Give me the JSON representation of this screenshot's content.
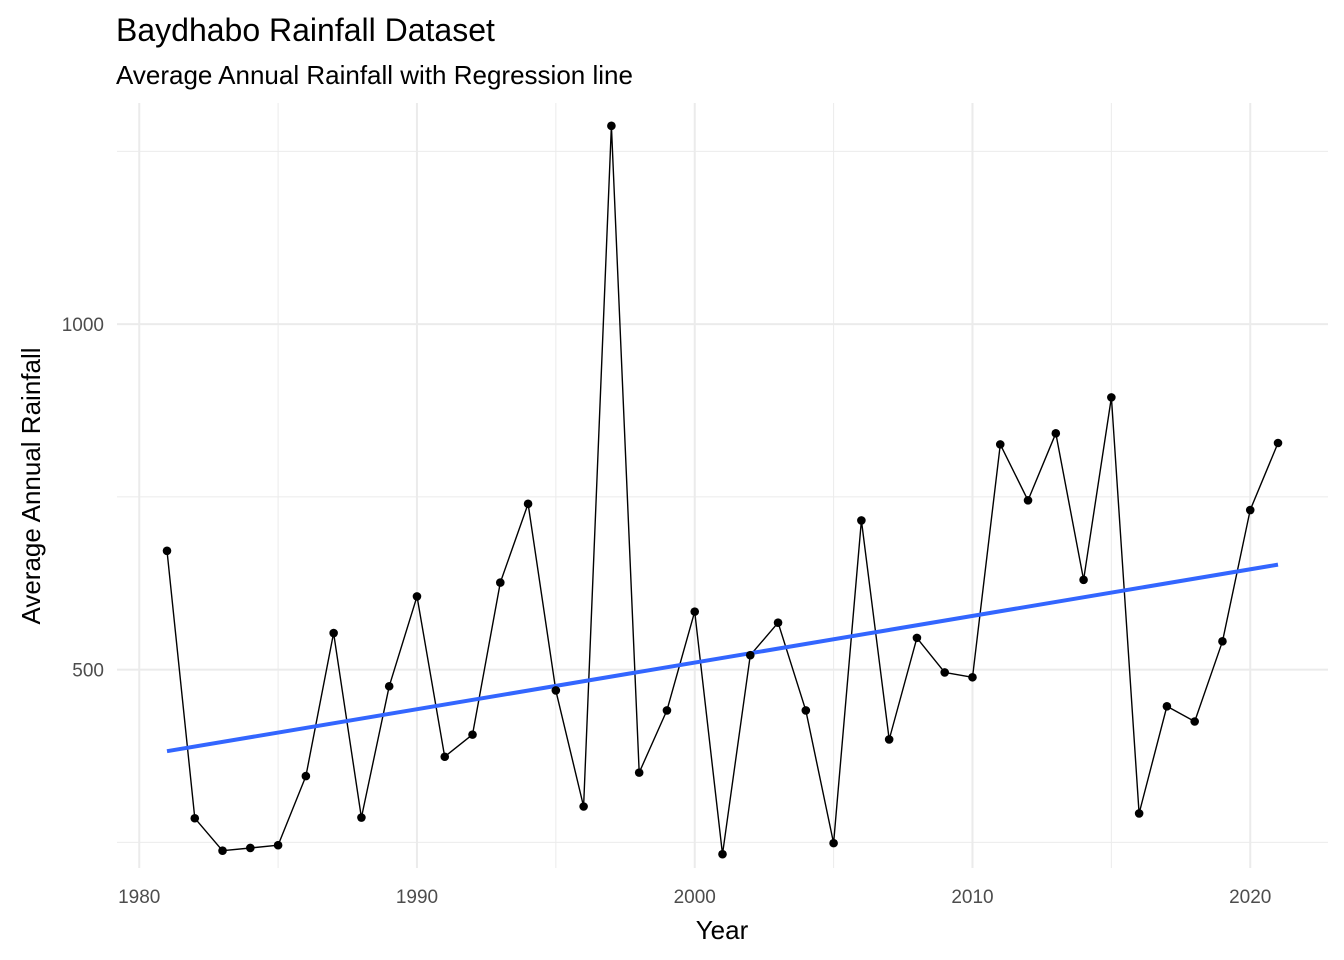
{
  "chart_data": {
    "type": "line",
    "title": "Baydhabo Rainfall Dataset",
    "subtitle": "Average Annual Rainfall with Regression line",
    "xlabel": "Year",
    "ylabel": "Average Annual Rainfall",
    "xlim": [
      1979.2,
      2022.8
    ],
    "ylim": [
      213,
      1320
    ],
    "x_ticks": [
      1980,
      1990,
      2000,
      2010,
      2020
    ],
    "y_ticks": [
      500,
      1000
    ],
    "grid": true,
    "series": [
      {
        "kind": "line-points",
        "color": "#000000",
        "x": [
          1981,
          1982,
          1983,
          1984,
          1985,
          1986,
          1987,
          1988,
          1989,
          1990,
          1991,
          1992,
          1993,
          1994,
          1995,
          1996,
          1997,
          1998,
          1999,
          2000,
          2001,
          2002,
          2003,
          2004,
          2005,
          2006,
          2007,
          2008,
          2009,
          2010,
          2011,
          2012,
          2013,
          2014,
          2015,
          2016,
          2017,
          2018,
          2019,
          2020,
          2021
        ],
        "y": [
          672,
          285,
          238,
          242,
          246,
          346,
          553,
          286,
          476,
          606,
          374,
          406,
          626,
          740,
          470,
          302,
          1287,
          351,
          441,
          584,
          233,
          521,
          568,
          441,
          249,
          716,
          399,
          546,
          496,
          489,
          826,
          745,
          842,
          630,
          894,
          292,
          447,
          425,
          541,
          731,
          828
        ]
      },
      {
        "kind": "regression",
        "color": "#3366ff",
        "x": [
          1981,
          2021
        ],
        "y": [
          382,
          652
        ]
      }
    ]
  }
}
